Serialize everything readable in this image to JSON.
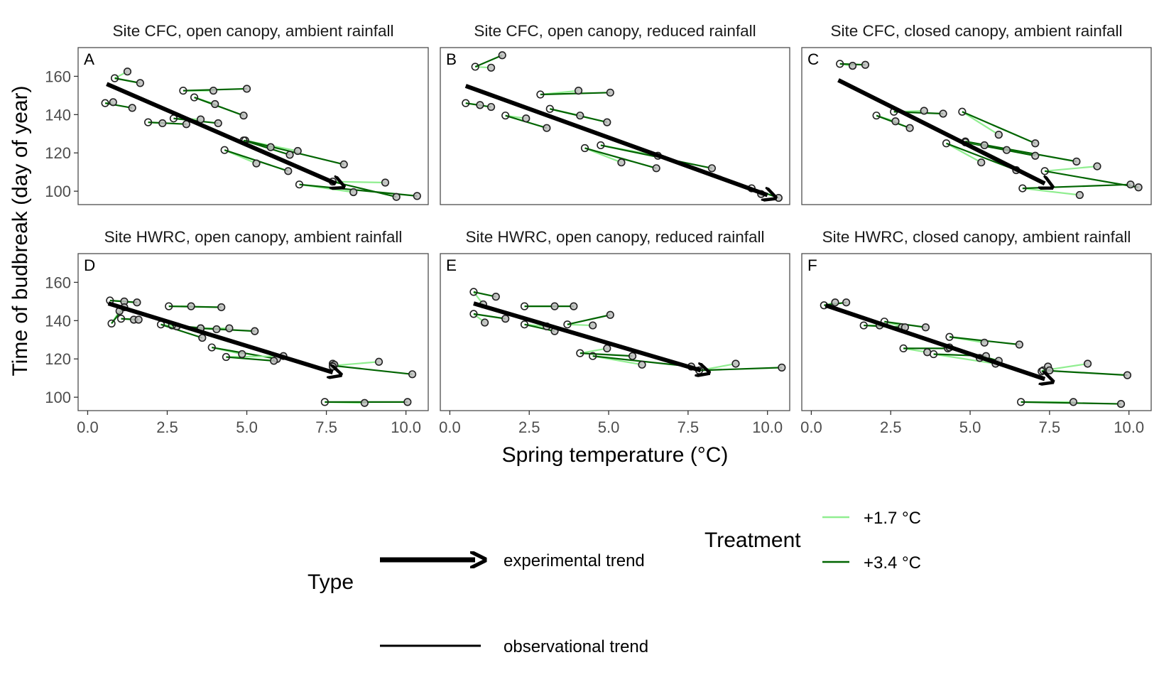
{
  "chart_data": {
    "type": "line",
    "xlabel": "Spring temperature (°C)",
    "ylabel": "Time of budbreak (day of year)",
    "xlim": [
      -0.3,
      10.7
    ],
    "ylim": [
      93,
      175
    ],
    "x_ticks": [
      0,
      2.5,
      5,
      7.5,
      10
    ],
    "x_tick_labels": [
      "0.0",
      "2.5",
      "5.0",
      "7.5",
      "10.0"
    ],
    "y_ticks": [
      100,
      120,
      140,
      160
    ],
    "y_tick_labels": [
      "100",
      "120",
      "140",
      "160"
    ],
    "grid": false,
    "legend": {
      "placement": "bottom",
      "type_title": "Type",
      "type_items": [
        "experimental trend",
        "observational trend"
      ],
      "treatment_title": "Treatment",
      "treatment_items": [
        {
          "label": "+1.7 °C",
          "color": "#90ee90"
        },
        {
          "label": "+3.4 °C",
          "color": "#006400"
        }
      ]
    },
    "colors": {
      "light": "#90ee90",
      "dark": "#006400",
      "arrow": "#000000",
      "point_edge": "#222222",
      "point_fill": "#bdbdbd"
    },
    "panels": [
      {
        "letter": "A",
        "title": "Site CFC, open canopy, ambient rainfall",
        "arrow": [
          [
            0.6,
            156
          ],
          [
            7.8,
            104
          ]
        ],
        "groups": [
          {
            "base": [
              0.85,
              159
            ],
            "light": [
              1.25,
              162.5
            ],
            "dark": [
              1.65,
              156.5
            ]
          },
          {
            "base": [
              0.55,
              146
            ],
            "light": [
              0.8,
              146.5
            ],
            "dark": [
              1.4,
              143.5
            ]
          },
          {
            "base": [
              3.0,
              152.5
            ],
            "light": [
              3.95,
              152.5
            ],
            "dark": [
              5.0,
              153.5
            ]
          },
          {
            "base": [
              3.35,
              149
            ],
            "light": [
              4.0,
              145.5
            ],
            "dark": [
              4.9,
              139.5
            ]
          },
          {
            "base": [
              1.9,
              136
            ],
            "light": [
              2.35,
              135.5
            ],
            "dark": [
              3.1,
              135
            ]
          },
          {
            "base": [
              2.7,
              138
            ],
            "light": [
              3.55,
              137.5
            ],
            "dark": [
              4.1,
              135.5
            ]
          },
          {
            "base": [
              4.9,
              126.5
            ],
            "light": [
              5.75,
              123
            ],
            "dark": [
              6.35,
              119
            ]
          },
          {
            "base": [
              4.95,
              126.5
            ],
            "light": [
              6.6,
              121
            ],
            "dark": [
              8.05,
              114
            ]
          },
          {
            "base": [
              4.3,
              121.5
            ],
            "light": [
              5.3,
              114.5
            ],
            "dark": [
              6.3,
              110.5
            ]
          },
          {
            "base": [
              6.65,
              103.5
            ],
            "light": [
              8.35,
              99.5
            ],
            "dark": [
              10.35,
              97.5
            ]
          },
          {
            "base": [
              7.7,
              105
            ],
            "light": [
              9.35,
              104.5
            ],
            "dark": [
              9.7,
              97
            ]
          }
        ]
      },
      {
        "letter": "B",
        "title": "Site CFC, open canopy, reduced rainfall",
        "arrow": [
          [
            0.5,
            155
          ],
          [
            10.0,
            98
          ]
        ],
        "groups": [
          {
            "base": [
              0.8,
              165
            ],
            "light": [
              1.3,
              164.5
            ],
            "dark": [
              1.65,
              171
            ]
          },
          {
            "base": [
              0.5,
              146
            ],
            "light": [
              0.95,
              145
            ],
            "dark": [
              1.3,
              144
            ]
          },
          {
            "base": [
              2.85,
              150.5
            ],
            "light": [
              4.05,
              152.5
            ],
            "dark": [
              5.05,
              151.5
            ]
          },
          {
            "base": [
              1.75,
              139.5
            ],
            "light": [
              2.4,
              138
            ],
            "dark": [
              3.05,
              133
            ]
          },
          {
            "base": [
              3.15,
              143
            ],
            "light": [
              4.1,
              139.5
            ],
            "dark": [
              4.95,
              136
            ]
          },
          {
            "base": [
              4.25,
              122.5
            ],
            "light": [
              5.4,
              115
            ],
            "dark": [
              6.5,
              112
            ]
          },
          {
            "base": [
              4.75,
              124
            ],
            "light": [
              6.55,
              118.5
            ],
            "dark": [
              8.25,
              112
            ]
          },
          {
            "base": [
              9.5,
              101.5
            ],
            "light": [
              9.8,
              98.5
            ],
            "dark": [
              10.35,
              96.5
            ]
          }
        ]
      },
      {
        "letter": "C",
        "title": "Site CFC, closed canopy, ambient rainfall",
        "arrow": [
          [
            0.85,
            158
          ],
          [
            7.35,
            104
          ]
        ],
        "groups": [
          {
            "base": [
              0.9,
              166.5
            ],
            "light": [
              1.3,
              165.5
            ],
            "dark": [
              1.7,
              166
            ]
          },
          {
            "base": [
              2.05,
              139.5
            ],
            "light": [
              2.65,
              136.5
            ],
            "dark": [
              3.1,
              133
            ]
          },
          {
            "base": [
              2.6,
              141.5
            ],
            "light": [
              3.55,
              142
            ],
            "dark": [
              4.15,
              140.5
            ]
          },
          {
            "base": [
              4.75,
              141.5
            ],
            "light": [
              5.9,
              129.5
            ],
            "dark": [
              7.05,
              125
            ]
          },
          {
            "base": [
              4.25,
              125
            ],
            "light": [
              5.35,
              115
            ],
            "dark": [
              6.45,
              111
            ]
          },
          {
            "base": [
              4.85,
              125.5
            ],
            "light": [
              6.15,
              121.5
            ],
            "dark": [
              7.05,
              118.5
            ]
          },
          {
            "base": [
              4.85,
              126
            ],
            "light": [
              5.45,
              124
            ],
            "dark": [
              8.35,
              115.5
            ]
          },
          {
            "base": [
              6.65,
              101.5
            ],
            "light": [
              8.45,
              98
            ],
            "dark": [
              10.05,
              103.5
            ]
          },
          {
            "base": [
              7.35,
              110.5
            ],
            "light": [
              9.0,
              113
            ],
            "dark": [
              10.3,
              102
            ]
          }
        ]
      },
      {
        "letter": "D",
        "title": "Site HWRC, open canopy, ambient rainfall",
        "arrow": [
          [
            0.65,
            149
          ],
          [
            7.7,
            113
          ]
        ],
        "groups": [
          {
            "base": [
              0.7,
              150.5
            ],
            "light": [
              1.15,
              150
            ],
            "dark": [
              1.55,
              149.5
            ]
          },
          {
            "base": [
              2.55,
              147.5
            ],
            "light": [
              3.25,
              147.5
            ],
            "dark": [
              4.2,
              147
            ]
          },
          {
            "base": [
              0.75,
              138.5
            ],
            "light": [
              1.0,
              145
            ],
            "dark": [
              1.15,
              147
            ]
          },
          {
            "base": [
              1.05,
              141
            ],
            "light": [
              1.45,
              140.5
            ],
            "dark": [
              1.6,
              140.5
            ]
          },
          {
            "base": [
              2.3,
              138
            ],
            "light": [
              2.8,
              137
            ],
            "dark": [
              3.6,
              131
            ]
          },
          {
            "base": [
              2.65,
              137.5
            ],
            "light": [
              3.55,
              136
            ],
            "dark": [
              4.05,
              135.5
            ]
          },
          {
            "base": [
              3.55,
              136
            ],
            "light": [
              4.45,
              136
            ],
            "dark": [
              5.25,
              134.5
            ]
          },
          {
            "base": [
              3.9,
              126
            ],
            "light": [
              4.85,
              122.5
            ],
            "dark": [
              5.95,
              120
            ]
          },
          {
            "base": [
              4.35,
              121
            ],
            "light": [
              6.15,
              121.5
            ],
            "dark": [
              5.85,
              119
            ]
          },
          {
            "base": [
              7.7,
              116.5
            ],
            "light": [
              9.15,
              118.5
            ],
            "dark": [
              10.2,
              112
            ]
          },
          {
            "base": [
              7.7,
              117.5
            ],
            "light": [
              7.75,
              117
            ],
            "dark": [
              7.7,
              116
            ]
          },
          {
            "base": [
              7.45,
              97.5
            ],
            "light": [
              8.7,
              97
            ],
            "dark": [
              10.05,
              97.5
            ]
          }
        ]
      },
      {
        "letter": "E",
        "title": "Site HWRC, open canopy, reduced rainfall",
        "arrow": [
          [
            0.75,
            149
          ],
          [
            7.9,
            114
          ]
        ],
        "groups": [
          {
            "base": [
              0.75,
              155
            ],
            "light": [
              1.05,
              148.5
            ],
            "dark": [
              1.45,
              152.5
            ]
          },
          {
            "base": [
              0.75,
              143.5
            ],
            "light": [
              1.1,
              139
            ],
            "dark": [
              1.75,
              141
            ]
          },
          {
            "base": [
              2.35,
              147.5
            ],
            "light": [
              3.3,
              147.5
            ],
            "dark": [
              3.9,
              147.5
            ]
          },
          {
            "base": [
              2.35,
              138
            ],
            "light": [
              3.05,
              137
            ],
            "dark": [
              3.3,
              134.5
            ]
          },
          {
            "base": [
              3.7,
              138
            ],
            "light": [
              4.5,
              137.5
            ],
            "dark": [
              5.05,
              143
            ]
          },
          {
            "base": [
              4.1,
              123
            ],
            "light": [
              4.95,
              125.5
            ],
            "dark": [
              5.75,
              121.5
            ]
          },
          {
            "base": [
              4.5,
              121.5
            ],
            "light": [
              6.05,
              117
            ],
            "dark": [
              7.6,
              116
            ]
          },
          {
            "base": [
              7.85,
              114
            ],
            "light": [
              9.0,
              117.5
            ],
            "dark": [
              10.45,
              115.5
            ]
          }
        ]
      },
      {
        "letter": "F",
        "title": "Site HWRC, closed canopy, ambient rainfall",
        "arrow": [
          [
            0.45,
            148
          ],
          [
            7.35,
            109.5
          ]
        ],
        "groups": [
          {
            "base": [
              0.4,
              148
            ],
            "light": [
              0.75,
              149.5
            ],
            "dark": [
              1.1,
              149.5
            ]
          },
          {
            "base": [
              1.65,
              137.5
            ],
            "light": [
              2.15,
              137.5
            ],
            "dark": [
              2.85,
              136.5
            ]
          },
          {
            "base": [
              2.3,
              139.5
            ],
            "light": [
              2.95,
              136.5
            ],
            "dark": [
              3.6,
              136.5
            ]
          },
          {
            "base": [
              2.9,
              125.5
            ],
            "light": [
              3.65,
              123.5
            ],
            "dark": [
              4.3,
              125.5
            ]
          },
          {
            "base": [
              4.35,
              131.5
            ],
            "light": [
              5.45,
              128.5
            ],
            "dark": [
              6.55,
              127.5
            ]
          },
          {
            "base": [
              3.85,
              122.5
            ],
            "light": [
              5.8,
              117.5
            ],
            "dark": [
              5.5,
              121.5
            ]
          },
          {
            "base": [
              4.35,
              126
            ],
            "light": [
              5.3,
              120.5
            ],
            "dark": [
              5.9,
              119
            ]
          },
          {
            "base": [
              7.3,
              114
            ],
            "light": [
              8.7,
              117.5
            ],
            "dark": [
              9.95,
              111.5
            ]
          },
          {
            "base": [
              7.25,
              113.5
            ],
            "light": [
              7.45,
              116
            ],
            "dark": [
              7.5,
              114
            ]
          },
          {
            "base": [
              6.6,
              97.5
            ],
            "light": [
              8.25,
              97.5
            ],
            "dark": [
              9.75,
              96.5
            ]
          }
        ]
      }
    ]
  }
}
